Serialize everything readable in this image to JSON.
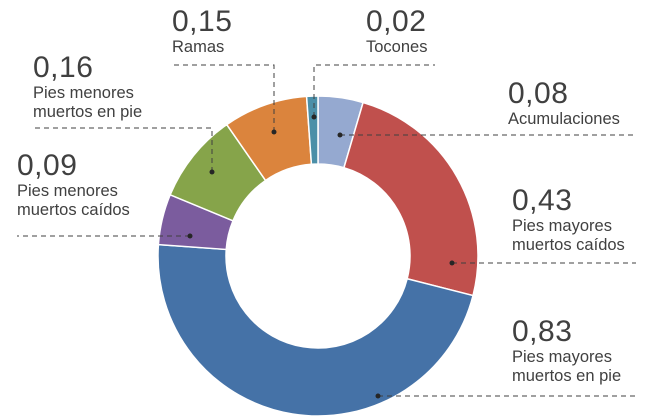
{
  "chart_data": {
    "type": "donut",
    "title": "",
    "slices": [
      {
        "label": "Acumulaciones",
        "value": 0.08,
        "value_text": "0,08",
        "color": "#95A9D0"
      },
      {
        "label": "Pies mayores muertos caídos",
        "value": 0.43,
        "value_text": "0,43",
        "color": "#C0504D"
      },
      {
        "label": "Pies mayores muertos en pie",
        "value": 0.83,
        "value_text": "0,83",
        "color": "#4572A7"
      },
      {
        "label": "Pies menores muertos caídos",
        "value": 0.09,
        "value_text": "0,09",
        "color": "#7B5C9E"
      },
      {
        "label": "Pies menores muertos en pie",
        "value": 0.16,
        "value_text": "0,16",
        "color": "#86A44A"
      },
      {
        "label": "Ramas",
        "value": 0.15,
        "value_text": "0,15",
        "color": "#DB843D"
      },
      {
        "label": "Tocones",
        "value": 0.02,
        "value_text": "0,02",
        "color": "#4B8FA8"
      }
    ],
    "start_at": "top",
    "direction": "clockwise",
    "legend": "none",
    "labels_style": "leader lines"
  }
}
